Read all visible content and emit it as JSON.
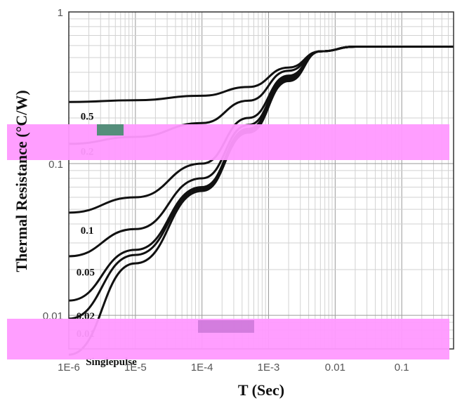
{
  "chart_data": {
    "type": "line",
    "title": "",
    "xlabel": "T (Sec)",
    "ylabel": "Thermal Resistance (°C/W)",
    "x_scale": "log",
    "y_scale": "log",
    "xlim": [
      1e-06,
      0.6
    ],
    "ylim": [
      0.006,
      1
    ],
    "grid": true,
    "x_ticks": [
      {
        "value": 1e-06,
        "label": "1E-6"
      },
      {
        "value": 1e-05,
        "label": "1E-5"
      },
      {
        "value": 0.0001,
        "label": "1E-4"
      },
      {
        "value": 0.001,
        "label": "1E-3"
      },
      {
        "value": 0.01,
        "label": "0.01"
      },
      {
        "value": 0.1,
        "label": "0.1"
      }
    ],
    "y_ticks": [
      {
        "value": 1,
        "label": "1"
      },
      {
        "value": 0.1,
        "label": "0.1"
      },
      {
        "value": 0.01,
        "label": "0.01"
      }
    ],
    "series": [
      {
        "name": "0.5",
        "x": [
          1e-06,
          1e-05,
          0.0001,
          0.0005,
          0.002,
          0.006,
          0.02,
          0.6
        ],
        "y": [
          0.255,
          0.262,
          0.28,
          0.32,
          0.43,
          0.55,
          0.59,
          0.59
        ]
      },
      {
        "name": "0.2",
        "x": [
          1e-06,
          1e-05,
          0.0001,
          0.0005,
          0.002,
          0.006,
          0.02,
          0.6
        ],
        "y": [
          0.135,
          0.15,
          0.185,
          0.26,
          0.41,
          0.55,
          0.59,
          0.59
        ]
      },
      {
        "name": "0.1",
        "x": [
          1e-06,
          1e-05,
          0.0001,
          0.0005,
          0.002,
          0.006,
          0.02,
          0.6
        ],
        "y": [
          0.0475,
          0.06,
          0.1,
          0.2,
          0.38,
          0.55,
          0.59,
          0.59
        ]
      },
      {
        "name": "0.05",
        "x": [
          1e-06,
          1e-05,
          0.0001,
          0.0005,
          0.002,
          0.006,
          0.02,
          0.6
        ],
        "y": [
          0.0245,
          0.037,
          0.08,
          0.18,
          0.37,
          0.55,
          0.59,
          0.59
        ]
      },
      {
        "name": "0.02",
        "x": [
          1e-06,
          1e-05,
          0.0001,
          0.0005,
          0.002,
          0.006,
          0.02,
          0.6
        ],
        "y": [
          0.0125,
          0.027,
          0.07,
          0.17,
          0.36,
          0.55,
          0.59,
          0.59
        ]
      },
      {
        "name": "0.01",
        "x": [
          1e-06,
          1e-05,
          0.0001,
          0.0005,
          0.002,
          0.006,
          0.02,
          0.6
        ],
        "y": [
          0.0095,
          0.025,
          0.068,
          0.165,
          0.355,
          0.55,
          0.59,
          0.59
        ]
      },
      {
        "name": "Singlepulse",
        "x": [
          1e-06,
          1e-05,
          0.0001,
          0.0005,
          0.002,
          0.006,
          0.02,
          0.6
        ],
        "y": [
          0.0055,
          0.022,
          0.066,
          0.16,
          0.35,
          0.55,
          0.59,
          0.59
        ]
      }
    ],
    "curve_labels": [
      {
        "text": "0.5",
        "x": 1.5e-06,
        "y": 0.195
      },
      {
        "text": "0.2",
        "x": 1.5e-06,
        "y": 0.114
      },
      {
        "text": "0.1",
        "x": 1.5e-06,
        "y": 0.0345
      },
      {
        "text": "0.05",
        "x": 1.3e-06,
        "y": 0.0183
      },
      {
        "text": "0.02",
        "x": 1.3e-06,
        "y": 0.0094
      },
      {
        "text": "0.01",
        "x": 1.3e-06,
        "y": 0.0072
      },
      {
        "text": "Singlepulse",
        "x": 1.8e-06,
        "y": 0.0047
      }
    ]
  },
  "colors": {
    "curve": "#111111",
    "grid_major": "#9a9a9a",
    "grid_minor": "#d2d2d2",
    "artifact_pink": "#ff99ff",
    "artifact_magenta": "#ff2aa8"
  }
}
